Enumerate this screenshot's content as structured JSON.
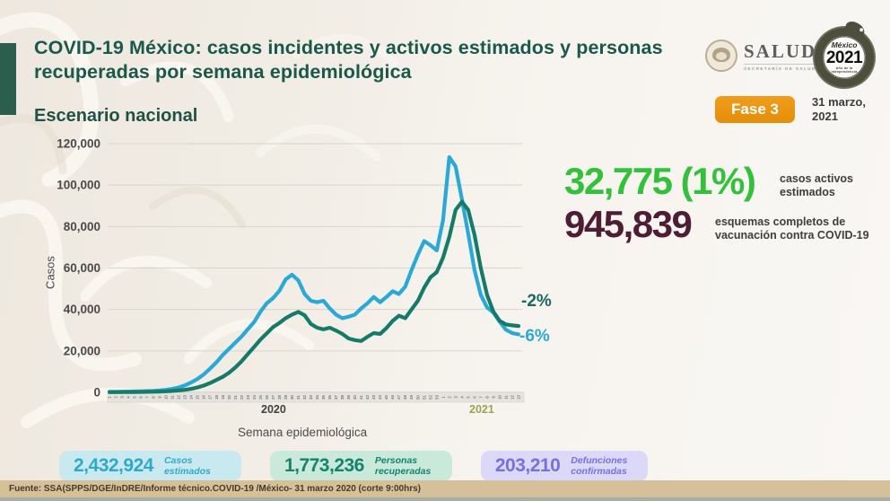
{
  "header": {
    "title": "COVID-19 México: casos incidentes y activos estimados y personas recuperadas por semana epidemiológica",
    "subtitle": "Escenario nacional",
    "phase_badge": "Fase 3",
    "date_line1": "31 marzo,",
    "date_line2": "2021",
    "salud_logo": {
      "wordmark": "SALUD",
      "subtitle": "SECRETARÍA DE SALUD"
    },
    "mexico_logo": {
      "country": "México",
      "year": "2021",
      "caption": "Año de la Independencia"
    }
  },
  "stats": {
    "active": {
      "value": "32,775 (1%)",
      "label": "casos activos estimados",
      "color": "#33c13c"
    },
    "vaccination": {
      "value": "945,839",
      "label": "esquemas completos de vacunación contra COVID-19",
      "color": "#4c1d33"
    }
  },
  "annotations": {
    "recovered_change": "-2%",
    "estimated_change": "-6%"
  },
  "summary_cards": [
    {
      "value": "2,432,924",
      "label": "Casos estimados",
      "text_color": "#2fa9c9",
      "bg_color": "#c8e9f0"
    },
    {
      "value": "1,773,236",
      "label": "Personas recuperadas",
      "text_color": "#15836b",
      "bg_color": "#c9e9db"
    },
    {
      "value": "203,210",
      "label": "Defunciones confirmadas",
      "text_color": "#7a6fe0",
      "bg_color": "#dcd8f7"
    }
  ],
  "footer": {
    "source": "Fuente: SSA(SPPS/DGE/InDRE/Informe técnico.COVID-19 /México- 31 marzo 2020 (corte 9:00hrs)"
  },
  "chart_data": {
    "type": "line",
    "xlabel": "Semana epidemiológica",
    "ylabel": "Casos",
    "ylim": [
      0,
      120000
    ],
    "ytick_step": 20000,
    "grid": true,
    "legend_position": "none",
    "x_years": [
      {
        "label": "2020",
        "weeks": 53
      },
      {
        "label": "2021",
        "weeks": 13
      }
    ],
    "series": [
      {
        "name": "Casos estimados",
        "color": "#2aa9d6",
        "values": [
          300,
          300,
          350,
          400,
          450,
          500,
          600,
          700,
          900,
          1200,
          1700,
          2400,
          3400,
          4800,
          6500,
          8700,
          11500,
          14500,
          18000,
          21000,
          24000,
          27000,
          30500,
          34000,
          39000,
          43000,
          45500,
          49000,
          54500,
          56800,
          54000,
          47500,
          44200,
          43500,
          44200,
          40500,
          37500,
          35800,
          36500,
          37500,
          40500,
          43000,
          46000,
          43500,
          46000,
          48800,
          47500,
          51000,
          59000,
          66500,
          73000,
          71000,
          68500,
          83000,
          113500,
          109000,
          93000,
          76500,
          59000,
          47000,
          41000,
          38500,
          34000,
          30200,
          28600,
          28000
        ]
      },
      {
        "name": "Personas recuperadas",
        "color": "#157a68",
        "values": [
          100,
          100,
          120,
          150,
          180,
          200,
          250,
          300,
          400,
          500,
          700,
          900,
          1200,
          1700,
          2400,
          3300,
          4500,
          6000,
          7500,
          9500,
          12000,
          15000,
          18500,
          22000,
          25500,
          28500,
          31500,
          33500,
          35800,
          37500,
          38800,
          37200,
          33000,
          31200,
          30400,
          31200,
          29800,
          28200,
          26000,
          25200,
          24800,
          26800,
          28600,
          28200,
          31000,
          34500,
          37000,
          35800,
          40000,
          44200,
          50500,
          55500,
          58000,
          65000,
          75000,
          88000,
          92000,
          88000,
          76000,
          60000,
          47000,
          39000,
          34500,
          32800,
          32300,
          32000
        ]
      }
    ]
  }
}
